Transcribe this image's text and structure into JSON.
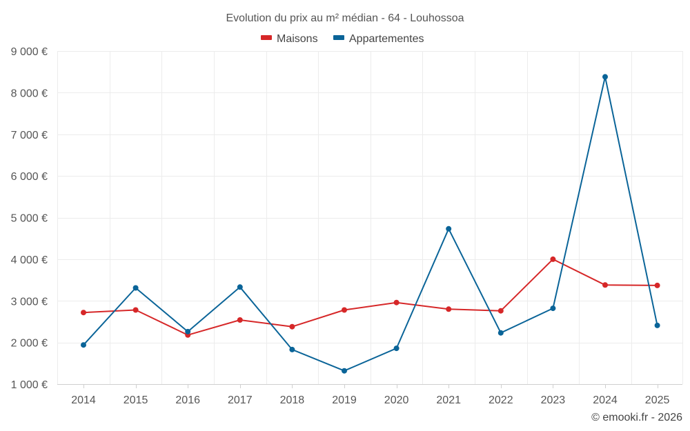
{
  "chart_data": {
    "type": "line",
    "title": "Evolution du prix au m² médian - 64 - Louhossoa",
    "xlabel": "",
    "ylabel": "",
    "categories": [
      "2014",
      "2015",
      "2016",
      "2017",
      "2018",
      "2019",
      "2020",
      "2021",
      "2022",
      "2023",
      "2024",
      "2025"
    ],
    "y_ticks": [
      1000,
      2000,
      3000,
      4000,
      5000,
      6000,
      7000,
      8000,
      9000
    ],
    "y_tick_labels": [
      "1 000 €",
      "2 000 €",
      "3 000 €",
      "4 000 €",
      "5 000 €",
      "6 000 €",
      "7 000 €",
      "8 000 €",
      "9 000 €"
    ],
    "ylim": [
      1000,
      9000
    ],
    "grid": true,
    "legend_position": "top-center",
    "series": [
      {
        "name": "Maisons",
        "color": "#d62728",
        "values": [
          2720,
          2780,
          2180,
          2540,
          2380,
          2780,
          2960,
          2800,
          2760,
          4000,
          3380,
          3370
        ]
      },
      {
        "name": "Appartementes",
        "color": "#0a6498",
        "values": [
          1940,
          3310,
          2260,
          3330,
          1830,
          1320,
          1860,
          4730,
          2230,
          2820,
          8380,
          2410
        ]
      }
    ]
  },
  "credit": "© emooki.fr - 2026"
}
